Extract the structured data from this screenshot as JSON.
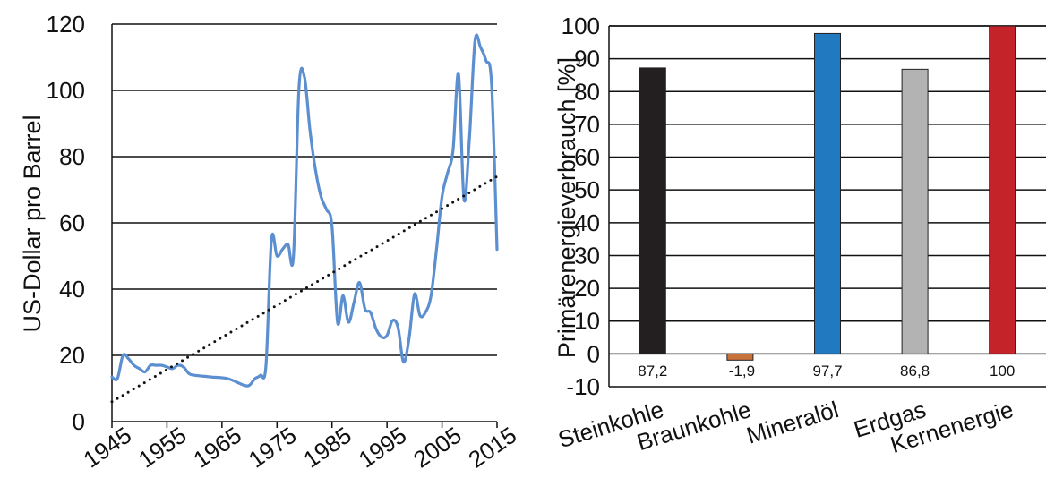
{
  "chart_data": [
    {
      "type": "line",
      "title": "",
      "xlabel": "",
      "ylabel": "US-Dollar pro Barrel",
      "xlim": [
        1945,
        2015
      ],
      "ylim": [
        0,
        120
      ],
      "xticks": [
        "1945",
        "1955",
        "1965",
        "1975",
        "1985",
        "1995",
        "2005",
        "2015"
      ],
      "yticks": [
        "0",
        "20",
        "40",
        "60",
        "80",
        "100",
        "120"
      ],
      "grid": "horizontal",
      "colors": {
        "series": "#5b8fcf",
        "trend": "#111111"
      },
      "series": [
        {
          "style": "solid",
          "x": [
            1945,
            1946,
            1947,
            1948,
            1949,
            1950,
            1951,
            1952,
            1953,
            1954,
            1955,
            1956,
            1957,
            1958,
            1959,
            1960,
            1963,
            1966,
            1969,
            1970,
            1971,
            1972,
            1973,
            1974,
            1975,
            1976,
            1977,
            1978,
            1979,
            1980,
            1981,
            1982,
            1983,
            1984,
            1985,
            1986,
            1987,
            1988,
            1989,
            1990,
            1991,
            1992,
            1993,
            1994,
            1995,
            1996,
            1997,
            1998,
            1999,
            2000,
            2001,
            2002,
            2003,
            2004,
            2005,
            2006,
            2007,
            2008,
            2009,
            2010,
            2011,
            2012,
            2013,
            2014,
            2015
          ],
          "y": [
            13.5,
            13,
            20,
            19,
            17,
            16,
            15,
            17,
            17,
            17,
            16.5,
            16,
            17,
            16.5,
            14.5,
            14,
            13.5,
            13,
            11,
            11,
            13,
            14,
            17,
            55,
            50,
            52,
            53.5,
            50,
            101,
            104,
            88,
            76,
            68,
            64,
            59,
            30,
            38,
            30,
            36,
            42,
            34,
            33,
            28,
            25.5,
            26,
            30.5,
            28.5,
            18,
            25,
            38.5,
            32,
            33,
            38,
            52,
            68,
            75,
            82,
            105,
            67,
            86,
            115,
            113,
            109,
            102,
            52
          ]
        },
        {
          "style": "dotted",
          "x": [
            1945,
            2015
          ],
          "y": [
            6,
            74
          ]
        }
      ]
    },
    {
      "type": "bar",
      "title": "",
      "xlabel": "",
      "ylabel": "Primärenergieverbrauch [%]",
      "ylim": [
        -10,
        100
      ],
      "yticks": [
        "-10",
        "0",
        "10",
        "20",
        "30",
        "40",
        "50",
        "60",
        "70",
        "80",
        "90",
        "100"
      ],
      "grid": "horizontal",
      "categories": [
        "Steinkohle",
        "Braunkohle",
        "Mineralöl",
        "Erdgas",
        "Kernenergie"
      ],
      "values": [
        87.2,
        -1.9,
        97.7,
        86.8,
        100
      ],
      "value_labels": [
        "87,2",
        "-1,9",
        "97,7",
        "86,8",
        "100"
      ],
      "colors": [
        "#231f20",
        "#c8733c",
        "#2179c0",
        "#b3b3b3",
        "#c5232a"
      ]
    }
  ]
}
